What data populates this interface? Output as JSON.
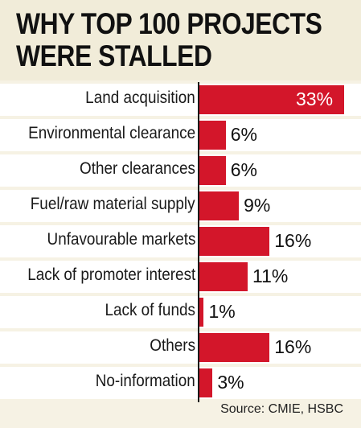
{
  "title_lines": [
    "WHY TOP 100 PROJECTS",
    "WERE STALLED"
  ],
  "source": "Source: CMIE, HSBC",
  "colors": {
    "bar": "#d3162a",
    "title_background": "#f1ecd9",
    "row_background": "#ffffff"
  },
  "chart_data": {
    "type": "bar",
    "orientation": "horizontal",
    "title": "WHY TOP 100 PROJECTS WERE STALLED",
    "categories": [
      "Land acquisition",
      "Environmental clearance",
      "Other clearances",
      "Fuel/raw material supply",
      "Unfavourable markets",
      "Lack of promoter interest",
      "Lack of funds",
      "Others",
      "No-information"
    ],
    "values": [
      33,
      6,
      6,
      9,
      16,
      11,
      1,
      16,
      3
    ],
    "value_labels": [
      "33%",
      "6%",
      "6%",
      "9%",
      "16%",
      "11%",
      "1%",
      "16%",
      "3%"
    ],
    "unit": "%",
    "xlim": [
      0,
      33
    ],
    "grid": false,
    "legend": "none"
  }
}
